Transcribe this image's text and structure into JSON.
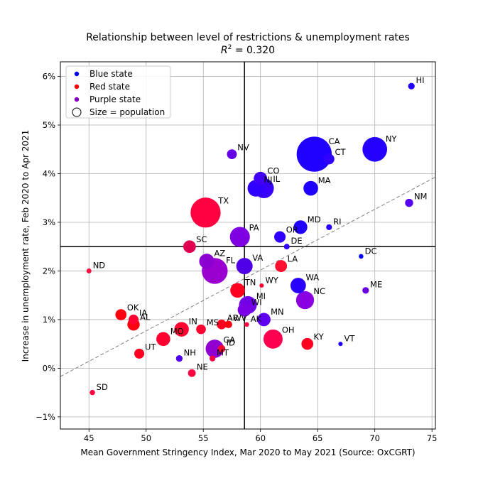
{
  "chart_data": {
    "type": "scatter",
    "title": "Relationship between level of restrictions & unemployment rates",
    "subtitle_prefix": "R",
    "subtitle_sup": "2",
    "subtitle_value": " = 0.320",
    "xlabel": "Mean Government Stringency Index, Mar 2020 to May 2021 (Source: OxCGRT)",
    "ylabel": "Increase in unemployment rate, Feb 2020 to Apr 2021",
    "xlim": [
      42.5,
      75.3
    ],
    "ylim": [
      -1.25,
      6.3
    ],
    "xticks": [
      45,
      50,
      55,
      60,
      65,
      70,
      75
    ],
    "xtick_labels": [
      "45",
      "50",
      "55",
      "60",
      "65",
      "70",
      "75"
    ],
    "yticks": [
      -1,
      0,
      1,
      2,
      3,
      4,
      5,
      6
    ],
    "ytick_labels": [
      "−1%",
      "0%",
      "1%",
      "2%",
      "3%",
      "4%",
      "5%",
      "6%"
    ],
    "grid": true,
    "vline_x": 58.6,
    "hline_y": 2.5,
    "trendline": {
      "x": [
        42.5,
        75.3
      ],
      "y": [
        -0.17,
        3.93
      ]
    },
    "colors": {
      "blue": "#0000ff",
      "red": "#ff0000",
      "purple": "#7f00bf"
    },
    "legend": {
      "placement": "top-left",
      "entries": [
        {
          "label": "Blue state",
          "kind": "blue"
        },
        {
          "label": "Red state",
          "kind": "red"
        },
        {
          "label": "Purple state",
          "kind": "purple"
        },
        {
          "label": "Size = population",
          "kind": "size"
        }
      ]
    },
    "points": [
      {
        "state": "HI",
        "x": 73.2,
        "y": 5.8,
        "color": "#1f00ff",
        "pop": 1.4
      },
      {
        "state": "CA",
        "x": 64.7,
        "y": 4.4,
        "color": "#2000ff",
        "pop": 39.5
      },
      {
        "state": "NY",
        "x": 70.0,
        "y": 4.5,
        "color": "#2400ff",
        "pop": 19.5
      },
      {
        "state": "CT",
        "x": 66.0,
        "y": 4.3,
        "color": "#3000ff",
        "pop": 3.6
      },
      {
        "state": "NV",
        "x": 57.5,
        "y": 4.4,
        "color": "#6400e6",
        "pop": 3.1
      },
      {
        "state": "CO",
        "x": 60.0,
        "y": 3.9,
        "color": "#4000f5",
        "pop": 5.8
      },
      {
        "state": "NJ",
        "x": 59.6,
        "y": 3.7,
        "color": "#3000ff",
        "pop": 8.9
      },
      {
        "state": "IL",
        "x": 60.3,
        "y": 3.7,
        "color": "#3800fa",
        "pop": 12.7
      },
      {
        "state": "MA",
        "x": 64.4,
        "y": 3.7,
        "color": "#2000ff",
        "pop": 6.9
      },
      {
        "state": "NM",
        "x": 73.0,
        "y": 3.4,
        "color": "#5500ee",
        "pop": 2.1
      },
      {
        "state": "TX",
        "x": 55.2,
        "y": 3.2,
        "color": "#ff0040",
        "pop": 29.0
      },
      {
        "state": "RI",
        "x": 66.0,
        "y": 2.9,
        "color": "#2800ff",
        "pop": 1.1
      },
      {
        "state": "MD",
        "x": 63.5,
        "y": 2.9,
        "color": "#2000ff",
        "pop": 6.0
      },
      {
        "state": "OR",
        "x": 61.7,
        "y": 2.7,
        "color": "#3000ff",
        "pop": 4.2
      },
      {
        "state": "PA",
        "x": 58.2,
        "y": 2.7,
        "color": "#7f00e0",
        "pop": 12.8
      },
      {
        "state": "DE",
        "x": 62.3,
        "y": 2.5,
        "color": "#3000ff",
        "pop": 1.0
      },
      {
        "state": "SC",
        "x": 53.8,
        "y": 2.5,
        "color": "#e00050",
        "pop": 5.1
      },
      {
        "state": "DC",
        "x": 68.8,
        "y": 2.3,
        "color": "#0000ff",
        "pop": 0.7
      },
      {
        "state": "AZ",
        "x": 55.3,
        "y": 2.2,
        "color": "#8a00d0",
        "pop": 7.3
      },
      {
        "state": "VA",
        "x": 58.6,
        "y": 2.1,
        "color": "#5000e6",
        "pop": 8.6
      },
      {
        "state": "FL",
        "x": 56.0,
        "y": 2.0,
        "color": "#9a00d0",
        "pop": 21.5
      },
      {
        "state": "ND",
        "x": 45.0,
        "y": 2.0,
        "color": "#ff1040",
        "pop": 0.8
      },
      {
        "state": "LA",
        "x": 61.8,
        "y": 2.1,
        "color": "#ff1030",
        "pop": 4.6
      },
      {
        "state": "WY",
        "x": 60.1,
        "y": 1.7,
        "color": "#ff0030",
        "pop": 0.6
      },
      {
        "state": "WA",
        "x": 63.3,
        "y": 1.7,
        "color": "#2800ff",
        "pop": 7.7
      },
      {
        "state": "ME",
        "x": 69.2,
        "y": 1.6,
        "color": "#6a00e6",
        "pop": 1.4
      },
      {
        "state": "TN",
        "x": 58.0,
        "y": 1.6,
        "color": "#ff0020",
        "pop": 6.9
      },
      {
        "state": "NC",
        "x": 63.9,
        "y": 1.4,
        "color": "#8a00e0",
        "pop": 10.4
      },
      {
        "state": "MI",
        "x": 58.9,
        "y": 1.3,
        "color": "#7000e6",
        "pop": 10.1
      },
      {
        "state": "WI",
        "x": 58.6,
        "y": 1.2,
        "color": "#7a00e6",
        "pop": 5.9
      },
      {
        "state": "OK",
        "x": 47.8,
        "y": 1.1,
        "color": "#ff0010",
        "pop": 4.0
      },
      {
        "state": "IA",
        "x": 48.9,
        "y": 1.0,
        "color": "#ff0030",
        "pop": 3.2
      },
      {
        "state": "MN",
        "x": 60.3,
        "y": 1.0,
        "color": "#6000f0",
        "pop": 5.7
      },
      {
        "state": "AL",
        "x": 48.9,
        "y": 0.9,
        "color": "#ff0010",
        "pop": 4.9
      },
      {
        "state": "AR",
        "x": 56.6,
        "y": 0.9,
        "color": "#ff0020",
        "pop": 3.0
      },
      {
        "state": "WV",
        "x": 57.2,
        "y": 0.9,
        "color": "#ff0010",
        "pop": 1.8
      },
      {
        "state": "AK",
        "x": 58.8,
        "y": 0.9,
        "color": "#ff0040",
        "pop": 0.7
      },
      {
        "state": "IN",
        "x": 53.1,
        "y": 0.8,
        "color": "#ff0030",
        "pop": 6.8
      },
      {
        "state": "MS",
        "x": 54.8,
        "y": 0.8,
        "color": "#ff0030",
        "pop": 3.0
      },
      {
        "state": "MO",
        "x": 51.5,
        "y": 0.6,
        "color": "#ff0030",
        "pop": 6.2
      },
      {
        "state": "OH",
        "x": 61.1,
        "y": 0.6,
        "color": "#ff0050",
        "pop": 11.8
      },
      {
        "state": "KY",
        "x": 64.1,
        "y": 0.5,
        "color": "#ff0020",
        "pop": 4.5
      },
      {
        "state": "VT",
        "x": 67.0,
        "y": 0.5,
        "color": "#2000ff",
        "pop": 0.6
      },
      {
        "state": "NH",
        "x": 52.9,
        "y": 0.2,
        "color": "#5000ee",
        "pop": 1.4
      },
      {
        "state": "UT",
        "x": 49.4,
        "y": 0.3,
        "color": "#ff0020",
        "pop": 3.2
      },
      {
        "state": "GA",
        "x": 56.0,
        "y": 0.4,
        "color": "#9000d0",
        "pop": 10.7
      },
      {
        "state": "ID",
        "x": 56.6,
        "y": 0.4,
        "color": "#ff0030",
        "pop": 1.8
      },
      {
        "state": "MT",
        "x": 55.8,
        "y": 0.2,
        "color": "#ff0040",
        "pop": 1.1
      },
      {
        "state": "NE",
        "x": 54.0,
        "y": -0.1,
        "color": "#ff0040",
        "pop": 1.9
      },
      {
        "state": "SD",
        "x": 45.3,
        "y": -0.5,
        "color": "#ff0040",
        "pop": 0.9
      }
    ],
    "label_offsets": {
      "WI": "WI",
      "GA": "GA"
    }
  }
}
